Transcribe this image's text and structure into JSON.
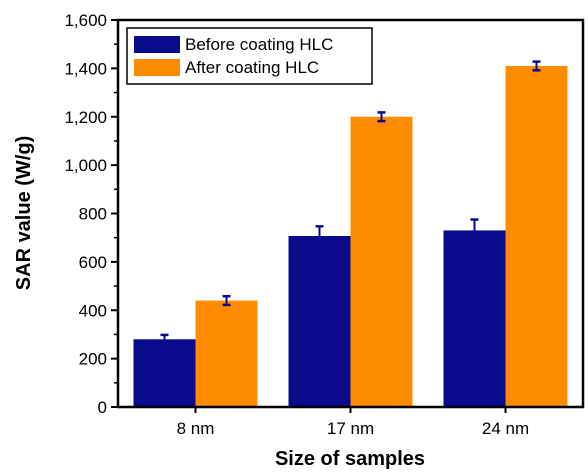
{
  "chart_data": {
    "type": "bar",
    "title": "",
    "xlabel": "Size of samples",
    "ylabel": "SAR value (W/g)",
    "categories": [
      "8 nm",
      "17 nm",
      "24 nm"
    ],
    "series": [
      {
        "name": "Before coating HLC",
        "color": "#0a0a8c",
        "values": [
          280,
          707,
          730
        ],
        "errors": [
          18,
          40,
          45
        ]
      },
      {
        "name": "After coating HLC",
        "color": "#ff8c00",
        "values": [
          440,
          1200,
          1410
        ],
        "errors": [
          18,
          18,
          18
        ]
      }
    ],
    "ylim": [
      0,
      1600
    ],
    "yticks": [
      0,
      200,
      400,
      600,
      800,
      1000,
      1200,
      1400,
      1600
    ],
    "ytick_labels": [
      "0",
      "200",
      "400",
      "600",
      "800",
      "1,000",
      "1,200",
      "1,400",
      "1,600"
    ],
    "error_bar_color": "#0a0a8c",
    "grid": false,
    "legend_position": "top-left"
  }
}
